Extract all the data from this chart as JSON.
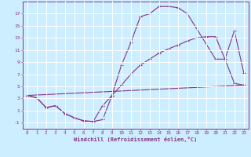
{
  "xlabel": "Windchill (Refroidissement éolien,°C)",
  "bg_color": "#cceeff",
  "line_color": "#883388",
  "grid_color": "#ffffff",
  "xlim": [
    -0.5,
    23.5
  ],
  "ylim": [
    -2,
    19
  ],
  "xticks": [
    0,
    1,
    2,
    3,
    4,
    5,
    6,
    7,
    8,
    9,
    10,
    11,
    12,
    13,
    14,
    15,
    16,
    17,
    18,
    19,
    20,
    21,
    22,
    23
  ],
  "yticks": [
    -1,
    1,
    3,
    5,
    7,
    9,
    11,
    13,
    15,
    17
  ],
  "curve1_x": [
    0,
    1,
    2,
    3,
    4,
    5,
    6,
    7,
    8,
    9,
    10,
    11,
    12,
    13,
    14,
    15,
    16,
    17,
    20,
    21,
    22,
    23
  ],
  "curve1_y": [
    3.5,
    3.1,
    1.5,
    1.8,
    0.5,
    -0.2,
    -0.7,
    -0.8,
    -0.5,
    3.5,
    8.5,
    12.2,
    16.5,
    17.0,
    18.2,
    18.2,
    18.0,
    17.0,
    9.5,
    9.5,
    14.2,
    7.2
  ],
  "curve2_x": [
    0,
    1,
    2,
    3,
    4,
    5,
    6,
    7,
    8,
    9,
    10,
    11,
    12,
    13,
    14,
    15,
    16,
    17,
    18,
    19,
    20,
    21,
    22,
    23
  ],
  "curve2_y": [
    3.5,
    3.1,
    1.5,
    1.8,
    0.5,
    -0.2,
    -0.7,
    -0.8,
    1.8,
    3.5,
    5.2,
    7.0,
    8.5,
    9.5,
    10.5,
    11.2,
    11.8,
    12.5,
    13.0,
    13.2,
    13.2,
    9.5,
    5.5,
    5.2
  ],
  "curve3_x": [
    0,
    23
  ],
  "curve3_y": [
    3.5,
    5.2
  ],
  "marker_x": [
    0,
    1,
    2,
    3,
    4,
    5,
    6,
    7,
    8,
    9,
    10,
    11,
    12,
    13,
    14,
    15,
    16,
    17,
    20,
    21,
    22,
    23
  ],
  "marker_y": [
    3.5,
    3.1,
    1.5,
    1.8,
    0.5,
    -0.2,
    -0.7,
    -0.8,
    -0.5,
    3.5,
    8.5,
    12.2,
    16.5,
    17.0,
    18.2,
    18.2,
    18.0,
    17.0,
    9.5,
    9.5,
    14.2,
    7.2
  ],
  "marker2_x": [
    0,
    1,
    2,
    3,
    4,
    5,
    6,
    7,
    8,
    9,
    10,
    11,
    12,
    13,
    14,
    15,
    16,
    17,
    18,
    19,
    20,
    21,
    22,
    23
  ],
  "marker2_y": [
    3.5,
    3.1,
    1.5,
    1.8,
    0.5,
    -0.2,
    -0.7,
    -0.8,
    1.8,
    3.5,
    5.2,
    7.0,
    8.5,
    9.5,
    10.5,
    11.2,
    11.8,
    12.5,
    13.0,
    13.2,
    13.2,
    9.5,
    5.5,
    5.2
  ]
}
